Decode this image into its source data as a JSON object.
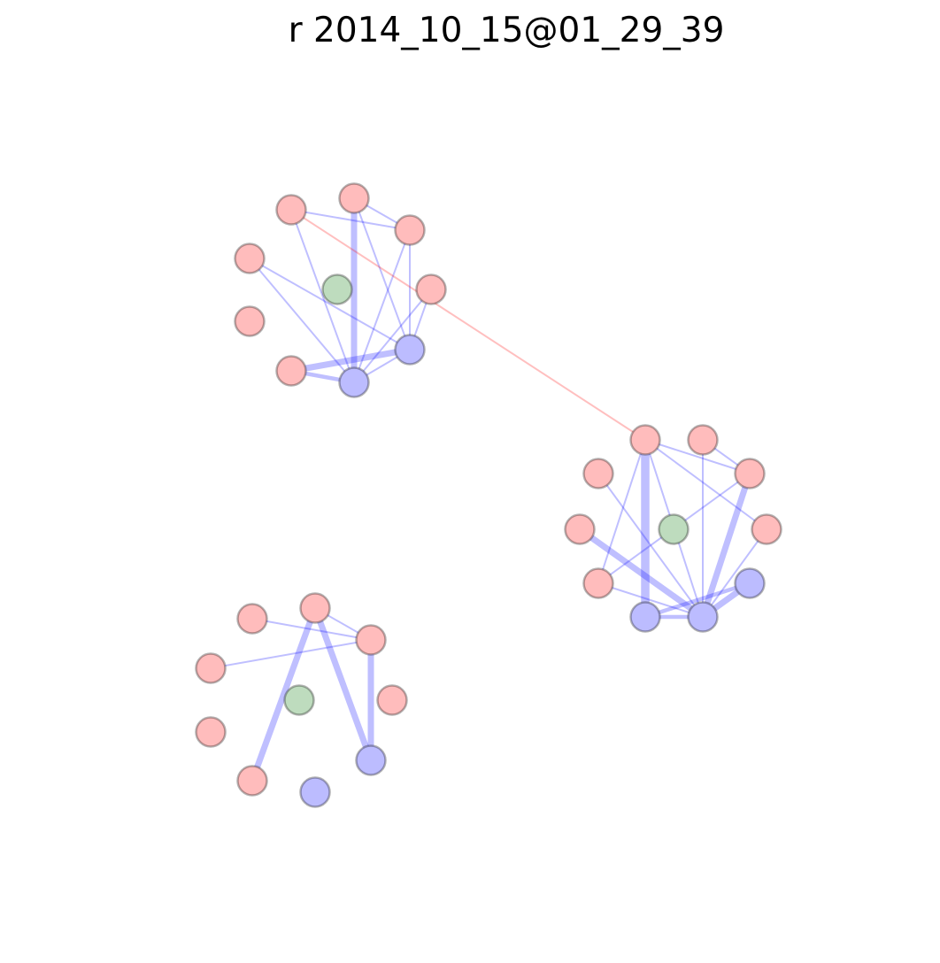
{
  "title": "r 2014_10_15@01_29_39",
  "colors": {
    "red_node": "#ffbcbc",
    "blue_node": "#bcbcff",
    "green_node": "#bedcbe",
    "blue_edge": "#0000ff",
    "red_edge": "#ff0000"
  },
  "groups": [
    {
      "id": "top-left",
      "nodes": [
        {
          "id": "a1",
          "kind": "red"
        },
        {
          "id": "a2",
          "kind": "red"
        },
        {
          "id": "a3",
          "kind": "red"
        },
        {
          "id": "a4",
          "kind": "red"
        },
        {
          "id": "a5",
          "kind": "red"
        },
        {
          "id": "a6",
          "kind": "red"
        },
        {
          "id": "a7",
          "kind": "red"
        },
        {
          "id": "a8",
          "kind": "green"
        },
        {
          "id": "a9",
          "kind": "blue"
        },
        {
          "id": "a10",
          "kind": "blue"
        }
      ]
    },
    {
      "id": "right",
      "nodes": [
        {
          "id": "b1",
          "kind": "red"
        },
        {
          "id": "b2",
          "kind": "red"
        },
        {
          "id": "b3",
          "kind": "red"
        },
        {
          "id": "b4",
          "kind": "red"
        },
        {
          "id": "b5",
          "kind": "red"
        },
        {
          "id": "b6",
          "kind": "red"
        },
        {
          "id": "b7",
          "kind": "red"
        },
        {
          "id": "b8",
          "kind": "green"
        },
        {
          "id": "b9",
          "kind": "blue"
        },
        {
          "id": "b10",
          "kind": "blue"
        },
        {
          "id": "b11",
          "kind": "blue"
        }
      ]
    },
    {
      "id": "bottom-left",
      "nodes": [
        {
          "id": "c1",
          "kind": "red"
        },
        {
          "id": "c2",
          "kind": "red"
        },
        {
          "id": "c3",
          "kind": "red"
        },
        {
          "id": "c4",
          "kind": "red"
        },
        {
          "id": "c5",
          "kind": "red"
        },
        {
          "id": "c6",
          "kind": "red"
        },
        {
          "id": "c7",
          "kind": "red"
        },
        {
          "id": "c8",
          "kind": "green"
        },
        {
          "id": "c9",
          "kind": "blue"
        },
        {
          "id": "c10",
          "kind": "blue"
        }
      ]
    }
  ],
  "edges": [
    {
      "from": "a2",
      "to": "a3",
      "weight": 1,
      "color": "blue"
    },
    {
      "from": "a1",
      "to": "a3",
      "weight": 1,
      "color": "blue"
    },
    {
      "from": "a2",
      "to": "a10",
      "weight": 3,
      "color": "blue"
    },
    {
      "from": "a1",
      "to": "a10",
      "weight": 1,
      "color": "blue"
    },
    {
      "from": "a4",
      "to": "a10",
      "weight": 1,
      "color": "blue"
    },
    {
      "from": "a3",
      "to": "a10",
      "weight": 1,
      "color": "blue"
    },
    {
      "from": "a3",
      "to": "a9",
      "weight": 1,
      "color": "blue"
    },
    {
      "from": "a2",
      "to": "a9",
      "weight": 1,
      "color": "blue"
    },
    {
      "from": "a5",
      "to": "a9",
      "weight": 1,
      "color": "blue"
    },
    {
      "from": "a4",
      "to": "a9",
      "weight": 1,
      "color": "blue"
    },
    {
      "from": "a5",
      "to": "a10",
      "weight": 1,
      "color": "blue"
    },
    {
      "from": "a7",
      "to": "a9",
      "weight": 3,
      "color": "blue"
    },
    {
      "from": "a7",
      "to": "a10",
      "weight": 2,
      "color": "blue"
    },
    {
      "from": "a10",
      "to": "a9",
      "weight": 1,
      "color": "blue"
    },
    {
      "from": "a1",
      "to": "b1",
      "weight": 1,
      "color": "red"
    },
    {
      "from": "b1",
      "to": "b3",
      "weight": 1,
      "color": "blue"
    },
    {
      "from": "b1",
      "to": "b5",
      "weight": 1,
      "color": "blue"
    },
    {
      "from": "b1",
      "to": "b9",
      "weight": 4,
      "color": "blue"
    },
    {
      "from": "b1",
      "to": "b10",
      "weight": 1,
      "color": "blue"
    },
    {
      "from": "b1",
      "to": "b7",
      "weight": 1,
      "color": "blue"
    },
    {
      "from": "b2",
      "to": "b10",
      "weight": 1,
      "color": "blue"
    },
    {
      "from": "b2",
      "to": "b3",
      "weight": 1,
      "color": "blue"
    },
    {
      "from": "b3",
      "to": "b7",
      "weight": 1,
      "color": "blue"
    },
    {
      "from": "b3",
      "to": "b10",
      "weight": 3,
      "color": "blue"
    },
    {
      "from": "b4",
      "to": "b10",
      "weight": 1,
      "color": "blue"
    },
    {
      "from": "b5",
      "to": "b10",
      "weight": 1,
      "color": "blue"
    },
    {
      "from": "b6",
      "to": "b10",
      "weight": 3,
      "color": "blue"
    },
    {
      "from": "b7",
      "to": "b10",
      "weight": 1,
      "color": "blue"
    },
    {
      "from": "b9",
      "to": "b10",
      "weight": 2,
      "color": "blue"
    },
    {
      "from": "b11",
      "to": "b10",
      "weight": 3,
      "color": "blue"
    },
    {
      "from": "b11",
      "to": "b9",
      "weight": 2,
      "color": "blue"
    },
    {
      "from": "c1",
      "to": "c3",
      "weight": 1,
      "color": "blue"
    },
    {
      "from": "c2",
      "to": "c3",
      "weight": 1,
      "color": "blue"
    },
    {
      "from": "c4",
      "to": "c3",
      "weight": 1,
      "color": "blue"
    },
    {
      "from": "c2",
      "to": "c9",
      "weight": 3,
      "color": "blue"
    },
    {
      "from": "c3",
      "to": "c9",
      "weight": 3,
      "color": "blue"
    },
    {
      "from": "c2",
      "to": "c6",
      "weight": 3,
      "color": "blue"
    }
  ]
}
